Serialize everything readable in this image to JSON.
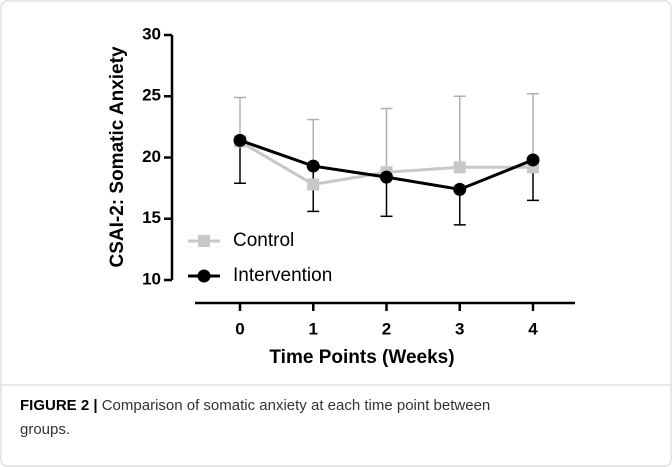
{
  "chart_data": {
    "type": "line",
    "xlabel": "Time Points (Weeks)",
    "ylabel": "CSAI-2: Somatic Anxiety",
    "x": [
      0,
      1,
      2,
      3,
      4
    ],
    "xlim": [
      -0.6,
      4.5
    ],
    "xticks": [
      0,
      1,
      2,
      3,
      4
    ],
    "ylim": [
      10,
      30
    ],
    "yticks": [
      10,
      15,
      20,
      25,
      30
    ],
    "legend": "lower left",
    "series": [
      {
        "name": "Control",
        "color": "#c8c8c8",
        "marker": "square",
        "error_direction": "up",
        "values": [
          21.3,
          17.8,
          18.8,
          19.2,
          19.2
        ],
        "errors": [
          3.6,
          5.3,
          5.2,
          5.8,
          6.0
        ]
      },
      {
        "name": "Intervention",
        "color": "#000000",
        "marker": "circle",
        "error_direction": "down",
        "values": [
          21.4,
          19.3,
          18.4,
          17.4,
          19.8
        ],
        "errors": [
          3.5,
          3.7,
          3.2,
          2.9,
          3.3
        ]
      }
    ]
  },
  "caption": {
    "label": "FIGURE 2 |",
    "text": "Comparison of somatic anxiety at each time point between groups."
  }
}
